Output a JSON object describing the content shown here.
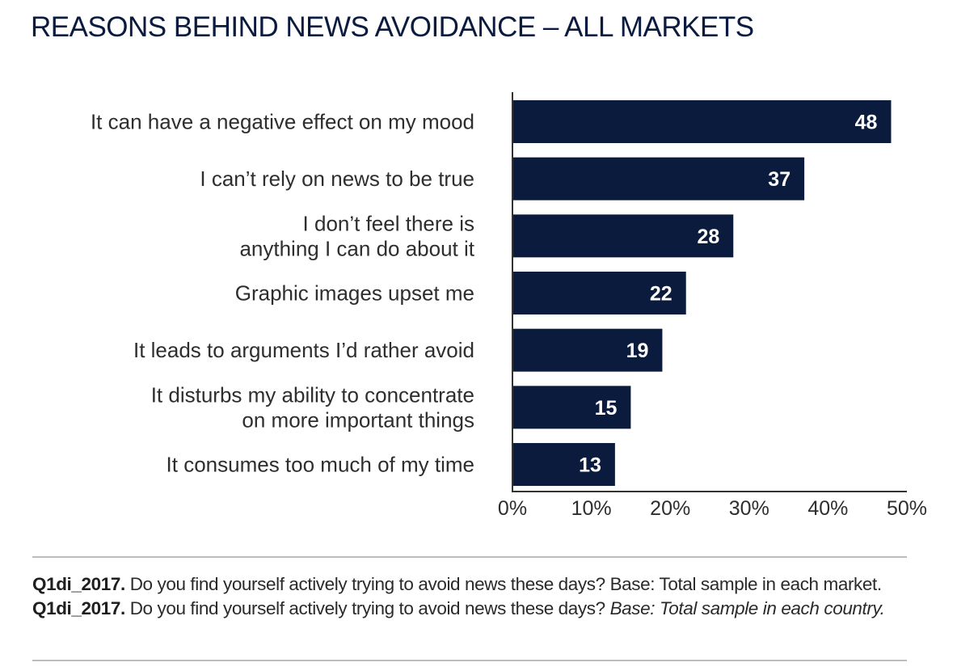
{
  "chart_data": {
    "type": "bar",
    "orientation": "horizontal",
    "title": "REASONS BEHIND NEWS AVOIDANCE – ALL MARKETS",
    "xlabel": "",
    "ylabel": "",
    "categories": [
      [
        "It can have a negative effect on my mood"
      ],
      [
        "I can’t rely on news to be true"
      ],
      [
        "I don’t feel there is",
        "anything I can do about it"
      ],
      [
        "Graphic images upset me"
      ],
      [
        "It leads to arguments I’d rather avoid"
      ],
      [
        "It disturbs my ability to concentrate",
        "on more important things"
      ],
      [
        "It consumes too much of my time"
      ]
    ],
    "values": [
      48,
      37,
      28,
      22,
      19,
      15,
      13
    ],
    "value_labels": [
      "48",
      "37",
      "28",
      "22",
      "19",
      "15",
      "13"
    ],
    "xlim": [
      0,
      50
    ],
    "x_ticks": [
      0,
      10,
      20,
      30,
      40,
      50
    ],
    "x_tick_labels": [
      "0%",
      "10%",
      "20%",
      "30%",
      "40%",
      "50%"
    ],
    "grid": false,
    "legend": "none",
    "bar_color": "#0b1b3d"
  },
  "footnote": {
    "q1_code": "Q1di_2017.",
    "q1_text": " Do you find yourself actively trying to avoid news these days? Base: Total sample in each market. ",
    "q2_code": "Q1di_2017.",
    "q2_text": " Do you find yourself actively trying to avoid news these days? ",
    "q2_italic": "Base: Total sample in each country."
  }
}
